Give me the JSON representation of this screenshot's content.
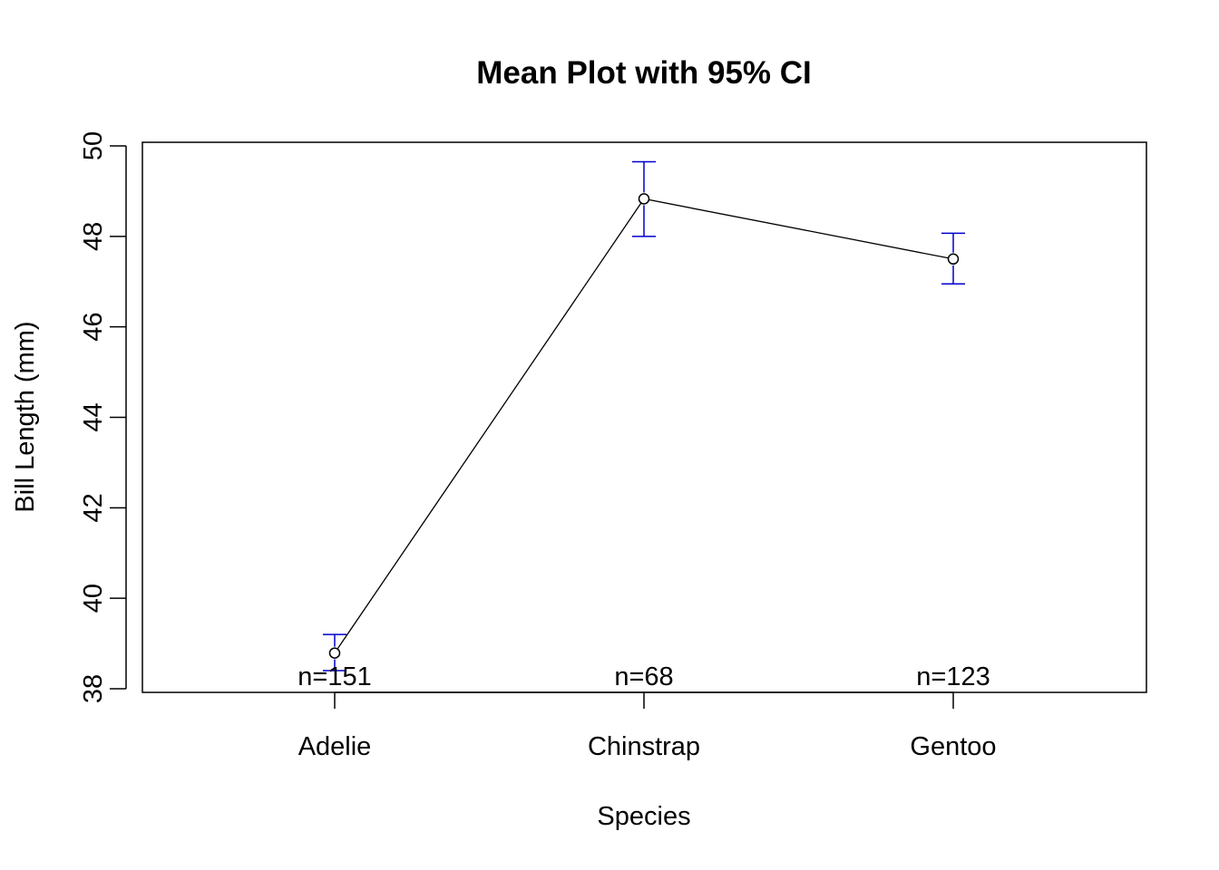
{
  "chart_data": {
    "type": "line",
    "title": "Mean Plot with 95% CI",
    "xlabel": "Species",
    "ylabel": "Bill Length (mm)",
    "categories": [
      "Adelie",
      "Chinstrap",
      "Gentoo"
    ],
    "means": [
      38.79,
      48.83,
      47.5
    ],
    "ci_lower": [
      38.4,
      48.0,
      46.95
    ],
    "ci_upper": [
      39.2,
      49.65,
      48.07
    ],
    "n_labels": [
      "n=151",
      "n=68",
      "n=123"
    ],
    "ylim": [
      38,
      50
    ],
    "yticks": [
      "38",
      "40",
      "42",
      "44",
      "46",
      "48",
      "50"
    ],
    "grid": false,
    "colors": {
      "line": "#000000",
      "ci": "#0000cd"
    }
  }
}
